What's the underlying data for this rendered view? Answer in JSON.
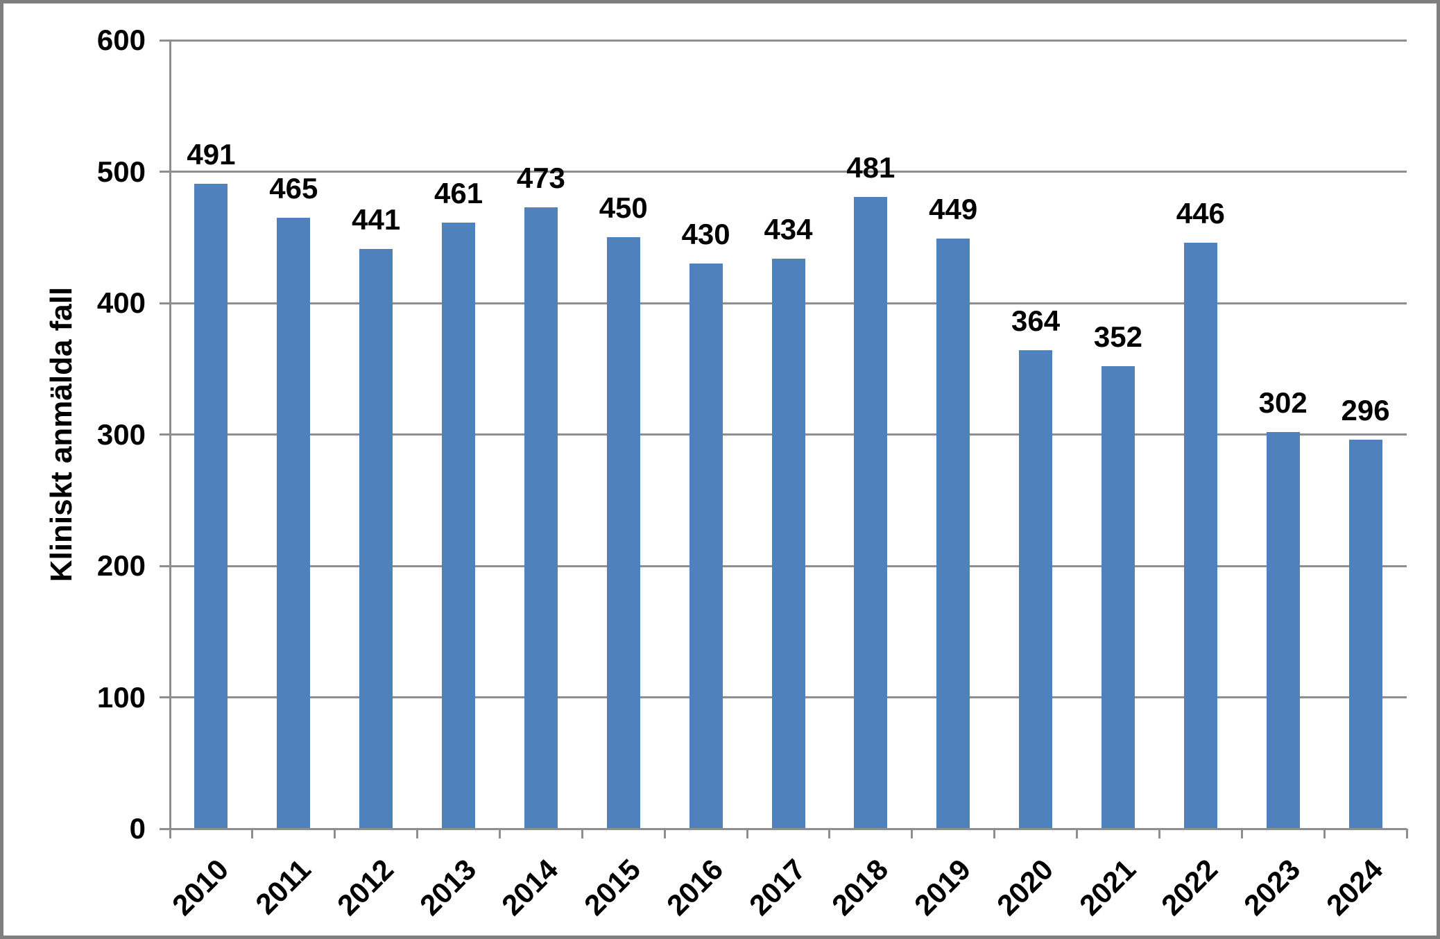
{
  "chart_data": {
    "type": "bar",
    "title": "",
    "categories": [
      "2010",
      "2011",
      "2012",
      "2013",
      "2014",
      "2015",
      "2016",
      "2017",
      "2018",
      "2019",
      "2020",
      "2021",
      "2022",
      "2023",
      "2024"
    ],
    "values": [
      491,
      465,
      441,
      461,
      473,
      450,
      430,
      434,
      481,
      449,
      364,
      352,
      446,
      302,
      296
    ],
    "value_labels": [
      "491",
      "465",
      "441",
      "461",
      "473",
      "450",
      "430",
      "434",
      "481",
      "449",
      "364",
      "352",
      "446",
      "302",
      "296"
    ],
    "xlabel": "",
    "ylabel": "Kliniskt anmälda fall",
    "ylim": [
      0,
      600
    ],
    "ytick_step": 100,
    "grid": "horizontal",
    "legend": "none",
    "colors": {
      "bar": "#4f81bd",
      "gridline": "#8e8e8e",
      "axis": "#8e8e8e",
      "frame": "#7f7f7f",
      "text": "#000000"
    }
  }
}
